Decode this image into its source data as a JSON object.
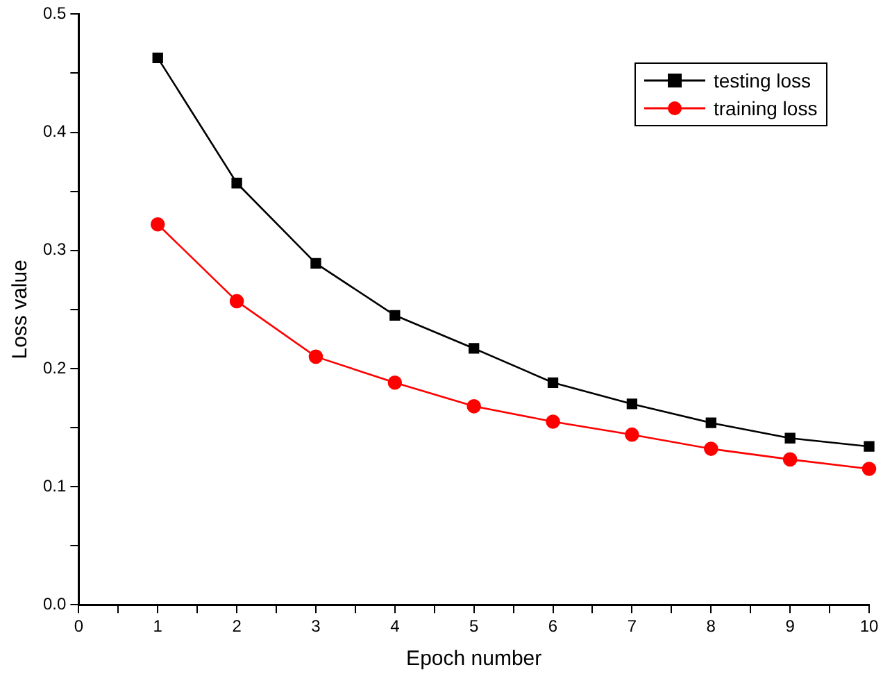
{
  "chart_data": {
    "type": "line",
    "xlabel": "Epoch number",
    "ylabel": "Loss value",
    "x": [
      1,
      2,
      3,
      4,
      5,
      6,
      7,
      8,
      9,
      10
    ],
    "series": [
      {
        "name": "testing loss",
        "color": "#000000",
        "marker": "square",
        "values": [
          0.463,
          0.357,
          0.289,
          0.245,
          0.217,
          0.188,
          0.17,
          0.154,
          0.141,
          0.134
        ]
      },
      {
        "name": "training loss",
        "color": "#ff0000",
        "marker": "circle",
        "values": [
          0.322,
          0.257,
          0.21,
          0.188,
          0.168,
          0.155,
          0.144,
          0.132,
          0.123,
          0.115
        ]
      }
    ],
    "xlim": [
      0,
      10
    ],
    "xticks": [
      0,
      {
        "value": 0.5,
        "label": null
      },
      1,
      {
        "value": 1.5,
        "label": null
      },
      2,
      {
        "value": 2.5,
        "label": null
      },
      3,
      {
        "value": 3.5,
        "label": null
      },
      4,
      {
        "value": 4.5,
        "label": null
      },
      5,
      {
        "value": 5.5,
        "label": null
      },
      6,
      {
        "value": 6.5,
        "label": null
      },
      7,
      {
        "value": 7.5,
        "label": null
      },
      8,
      {
        "value": 8.5,
        "label": null
      },
      9,
      {
        "value": 9.5,
        "label": null
      },
      10
    ],
    "ylim": [
      0,
      0.5
    ],
    "yticks": [
      {
        "value": 0,
        "label": "0.0"
      },
      {
        "value": 0.05,
        "label": null
      },
      0.1,
      {
        "value": 0.15,
        "label": null
      },
      0.2,
      {
        "value": 0.25,
        "label": null
      },
      0.3,
      {
        "value": 0.35,
        "label": null
      },
      0.4,
      {
        "value": 0.45,
        "label": null
      },
      0.5
    ],
    "grid": false,
    "legend": "top right",
    "line_style": "solid"
  }
}
